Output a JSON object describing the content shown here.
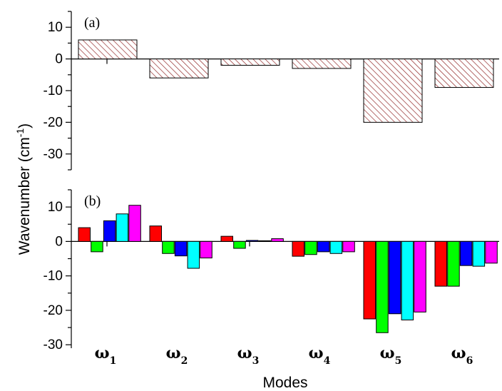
{
  "chart_data": [
    {
      "type": "bar",
      "panel_label": "(a)",
      "categories": [
        "ω1",
        "ω2",
        "ω3",
        "ω4",
        "ω5",
        "ω6"
      ],
      "values": [
        6,
        -6,
        -2,
        -3,
        -20,
        -9
      ],
      "ylim": [
        -35,
        15
      ],
      "yticks": [
        10,
        0,
        -10,
        -20,
        -30
      ],
      "bar_fill": "hatched",
      "bar_color": "#8b1a1a"
    },
    {
      "type": "bar",
      "panel_label": "(b)",
      "categories": [
        "ω1",
        "ω2",
        "ω3",
        "ω4",
        "ω5",
        "ω6"
      ],
      "series": [
        {
          "color": "#ff0000",
          "values": [
            4.0,
            4.5,
            1.5,
            -4.3,
            -22.5,
            -13.0
          ]
        },
        {
          "color": "#00ff00",
          "values": [
            -3.0,
            -3.5,
            -2.0,
            -3.8,
            -26.5,
            -13.0
          ]
        },
        {
          "color": "#0000ff",
          "values": [
            6.0,
            -4.2,
            0.3,
            -3.0,
            -21.0,
            -7.0
          ]
        },
        {
          "color": "#00ffff",
          "values": [
            8.0,
            -7.8,
            0.2,
            -3.5,
            -22.8,
            -7.2
          ]
        },
        {
          "color": "#ff00ff",
          "values": [
            10.5,
            -4.8,
            0.8,
            -3.0,
            -20.5,
            -6.3
          ]
        }
      ],
      "ylim": [
        -31,
        15
      ],
      "yticks": [
        10,
        0,
        -10,
        -20,
        -30
      ]
    }
  ],
  "shared_axes": {
    "ylabel_main": "Wavenumber (cm",
    "ylabel_sup": "-1",
    "ylabel_close": ")",
    "xlabel": "Modes",
    "category_symbol": "ω",
    "category_subscripts": [
      "1",
      "2",
      "3",
      "4",
      "5",
      "6"
    ]
  }
}
